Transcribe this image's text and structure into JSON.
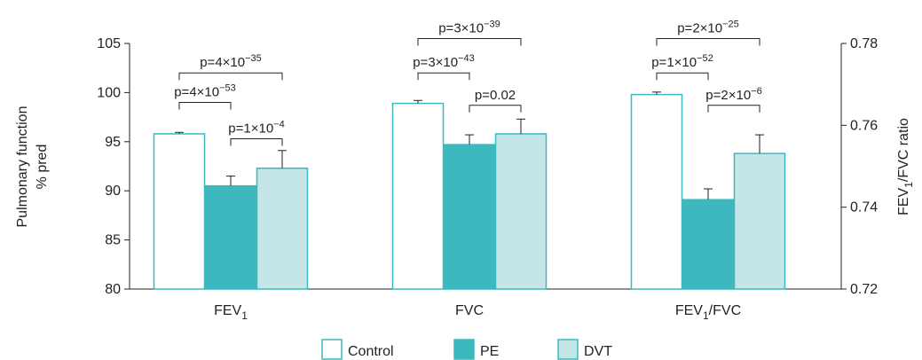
{
  "chart_data": {
    "type": "bar",
    "categories": [
      {
        "base": "FEV",
        "sub": "1",
        "tail": ""
      },
      {
        "base": "FVC",
        "sub": "",
        "tail": ""
      },
      {
        "base": "FEV",
        "sub": "1",
        "tail": "/FVC"
      }
    ],
    "ylabel_left": [
      "Pulmonary function",
      "% pred"
    ],
    "ylabel_right": {
      "base": "FEV",
      "sub": "1",
      "tail": "/FVC ratio"
    },
    "ylim_left": [
      80,
      105
    ],
    "yticks_left": [
      80,
      85,
      90,
      95,
      100,
      105
    ],
    "ylim_right": [
      0.72,
      0.78
    ],
    "yticks_right": [
      "0.72",
      "0.74",
      "0.76",
      "0.78"
    ],
    "grid": false,
    "legend_position": "bottom",
    "series": [
      {
        "name": "Control",
        "values": [
          95.8,
          98.9,
          99.8
        ],
        "errors": [
          0.15,
          0.3,
          0.25
        ],
        "color": "#ffffff",
        "stroke": "#3db8bf"
      },
      {
        "name": "PE",
        "values": [
          90.5,
          94.7,
          89.1
        ],
        "errors": [
          1.0,
          1.0,
          1.1
        ],
        "color": "#3db8bf",
        "stroke": "#3db8bf"
      },
      {
        "name": "DVT",
        "values": [
          92.3,
          95.8,
          93.8
        ],
        "errors": [
          1.8,
          1.5,
          1.9
        ],
        "color": "#c5e6e9",
        "stroke": "#3db8bf"
      }
    ],
    "comparisons": [
      {
        "group": 0,
        "from": 0,
        "to": 1,
        "level": 99.0,
        "label": {
          "pre": "p=4×10",
          "exp": "−53"
        }
      },
      {
        "group": 0,
        "from": 1,
        "to": 2,
        "level": 95.3,
        "label": {
          "pre": "p=1×10",
          "exp": "−4"
        }
      },
      {
        "group": 0,
        "from": 0,
        "to": 2,
        "level": 102.0,
        "label": {
          "pre": "p=4×10",
          "exp": "−35"
        }
      },
      {
        "group": 1,
        "from": 0,
        "to": 1,
        "level": 102.0,
        "label": {
          "pre": "p=3×10",
          "exp": "−43"
        }
      },
      {
        "group": 1,
        "from": 1,
        "to": 2,
        "level": 98.7,
        "label": {
          "pre": "p=0.02",
          "exp": ""
        }
      },
      {
        "group": 1,
        "from": 0,
        "to": 2,
        "level": 105.5,
        "label": {
          "pre": "p=3×10",
          "exp": "−39"
        }
      },
      {
        "group": 2,
        "from": 0,
        "to": 1,
        "level": 102.0,
        "label": {
          "pre": "p=1×10",
          "exp": "−52"
        }
      },
      {
        "group": 2,
        "from": 1,
        "to": 2,
        "level": 98.7,
        "label": {
          "pre": "p=2×10",
          "exp": "−6"
        }
      },
      {
        "group": 2,
        "from": 0,
        "to": 2,
        "level": 105.5,
        "label": {
          "pre": "p=2×10",
          "exp": "−25"
        }
      }
    ]
  }
}
